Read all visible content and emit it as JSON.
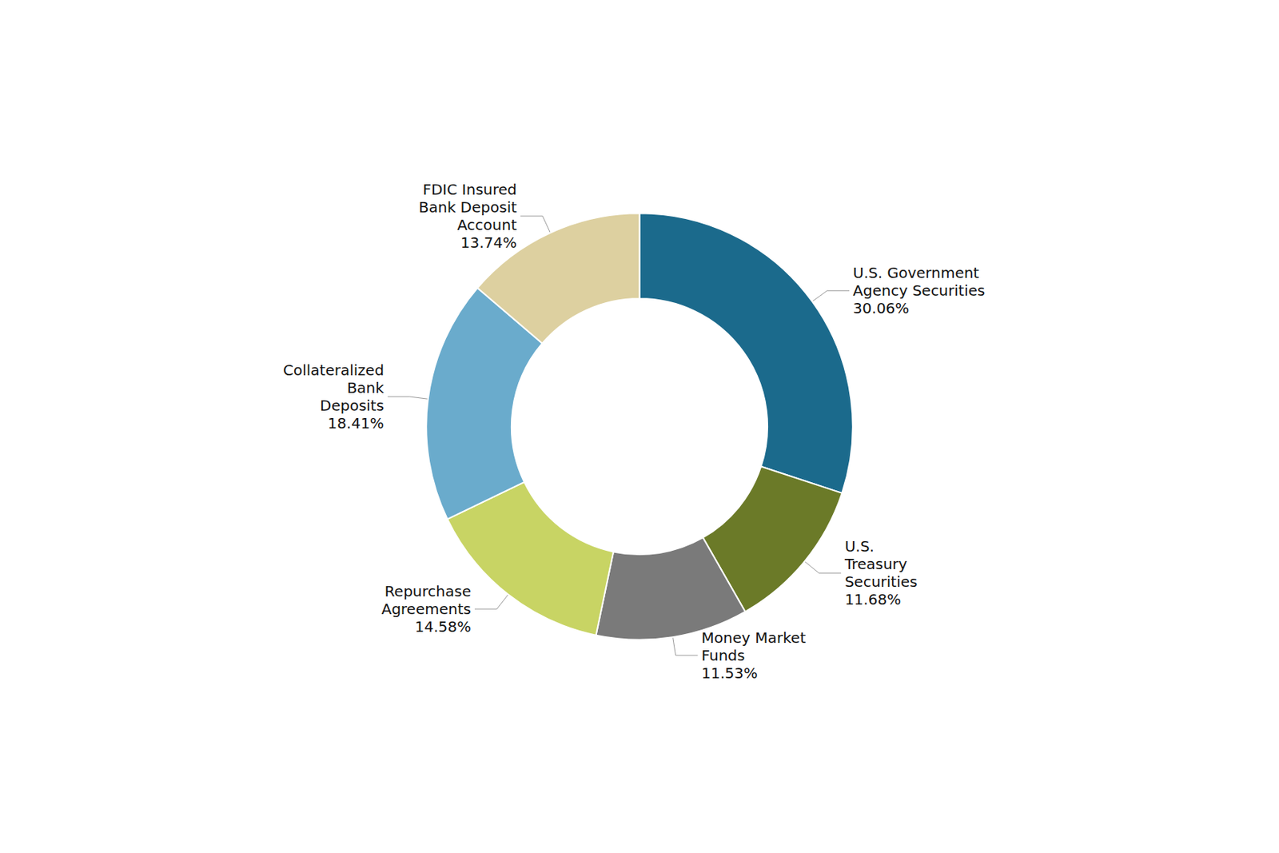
{
  "chart_data": {
    "type": "pie",
    "categories": [
      "U.S. Government\nAgency Securities",
      "U.S.\nTreasury\nSecurities",
      "Money Market\nFunds",
      "Repurchase\nAgreements",
      "Collateralized\nBank\nDeposits",
      "FDIC Insured\nBank Deposit\nAccount"
    ],
    "values": [
      30.06,
      11.68,
      11.53,
      14.58,
      18.41,
      13.74
    ],
    "value_labels": [
      "30.06%",
      "11.68%",
      "11.53%",
      "14.58%",
      "18.41%",
      "13.74%"
    ],
    "colors": [
      "#1b6a8c",
      "#6b7a28",
      "#7a7a7a",
      "#c8d464",
      "#6aabcc",
      "#ddd0a0"
    ],
    "data_labels": true
  }
}
